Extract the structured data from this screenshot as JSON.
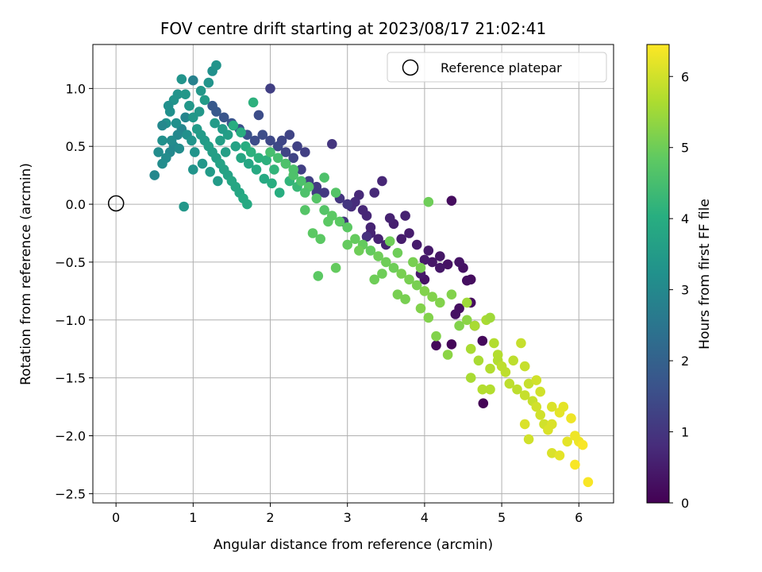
{
  "chart_data": {
    "type": "scatter",
    "title": "FOV centre drift starting at 2023/08/17 21:02:41",
    "xlabel": "Angular distance from reference (arcmin)",
    "ylabel": "Rotation from reference (arcmin)",
    "xlim": [
      -0.3,
      6.45
    ],
    "ylim": [
      -2.58,
      1.38
    ],
    "xticks": [
      0,
      1,
      2,
      3,
      4,
      5,
      6
    ],
    "xtick_labels": [
      "0",
      "1",
      "2",
      "3",
      "4",
      "5",
      "6"
    ],
    "yticks": [
      1.0,
      0.5,
      0.0,
      -0.5,
      -1.0,
      -1.5,
      -2.0,
      -2.5
    ],
    "ytick_labels": [
      "1.0",
      "0.5",
      "0.0",
      "−0.5",
      "−1.0",
      "−1.5",
      "−2.0",
      "−2.5"
    ],
    "grid": true,
    "colormap": "viridis",
    "colorbar": {
      "label": "Hours from first FF file",
      "range": [
        0,
        6.45
      ],
      "ticks": [
        0,
        1,
        2,
        3,
        4,
        5,
        6
      ],
      "tick_labels": [
        "0",
        "1",
        "2",
        "3",
        "4",
        "5",
        "6"
      ]
    },
    "legend": {
      "placement": "top-right",
      "entries": [
        "Reference platepar"
      ]
    },
    "reference_point": {
      "x": 0.0,
      "y": 0.0,
      "label": "Reference platepar"
    },
    "points": [
      [
        4.76,
        -1.72,
        0.05
      ],
      [
        4.35,
        -1.21,
        0.1
      ],
      [
        4.15,
        -1.22,
        0.12
      ],
      [
        4.6,
        -0.65,
        0.2
      ],
      [
        4.55,
        -0.66,
        0.25
      ],
      [
        4.5,
        -0.55,
        0.3
      ],
      [
        4.3,
        -0.52,
        0.3
      ],
      [
        4.45,
        -0.5,
        0.35
      ],
      [
        4.2,
        -0.45,
        0.4
      ],
      [
        4.1,
        -0.5,
        0.4
      ],
      [
        4.0,
        -0.48,
        0.45
      ],
      [
        3.9,
        -0.35,
        0.5
      ],
      [
        3.8,
        -0.25,
        0.5
      ],
      [
        3.7,
        -0.3,
        0.5
      ],
      [
        3.6,
        -0.17,
        0.55
      ],
      [
        3.5,
        -0.35,
        0.6
      ],
      [
        3.4,
        -0.3,
        0.6
      ],
      [
        3.3,
        -0.25,
        0.65
      ],
      [
        3.25,
        -0.1,
        0.7
      ],
      [
        3.2,
        -0.05,
        0.7
      ],
      [
        3.15,
        0.08,
        0.75
      ],
      [
        3.1,
        0.02,
        0.8
      ],
      [
        3.05,
        -0.02,
        0.8
      ],
      [
        4.35,
        0.03,
        0.2
      ],
      [
        4.0,
        -0.65,
        0.35
      ],
      [
        4.6,
        -0.85,
        0.2
      ],
      [
        4.45,
        -0.9,
        0.25
      ],
      [
        3.45,
        0.2,
        0.7
      ],
      [
        4.75,
        -1.18,
        0.15
      ],
      [
        4.4,
        -0.95,
        0.3
      ],
      [
        4.05,
        -0.4,
        0.45
      ],
      [
        3.95,
        -0.6,
        0.45
      ],
      [
        3.35,
        0.1,
        0.75
      ],
      [
        3.3,
        -0.2,
        0.65
      ],
      [
        4.2,
        -0.55,
        0.4
      ],
      [
        4.65,
        -1.05,
        0.18
      ],
      [
        3.75,
        -0.1,
        0.6
      ],
      [
        3.55,
        -0.12,
        0.6
      ],
      [
        3.0,
        0.0,
        1.0
      ],
      [
        2.9,
        0.05,
        1.0
      ],
      [
        2.7,
        0.1,
        1.1
      ],
      [
        2.6,
        0.15,
        1.1
      ],
      [
        2.5,
        0.2,
        1.2
      ],
      [
        2.4,
        0.3,
        1.2
      ],
      [
        2.3,
        0.4,
        1.3
      ],
      [
        2.2,
        0.45,
        1.3
      ],
      [
        2.1,
        0.5,
        1.4
      ],
      [
        2.0,
        0.55,
        1.4
      ],
      [
        1.9,
        0.6,
        1.5
      ],
      [
        1.8,
        0.55,
        1.5
      ],
      [
        1.7,
        0.6,
        1.6
      ],
      [
        1.6,
        0.65,
        1.6
      ],
      [
        1.5,
        0.7,
        1.7
      ],
      [
        1.4,
        0.75,
        1.7
      ],
      [
        1.3,
        0.8,
        1.8
      ],
      [
        1.25,
        0.85,
        1.8
      ],
      [
        2.0,
        1.0,
        1.2
      ],
      [
        2.8,
        0.52,
        1.0
      ],
      [
        2.25,
        0.6,
        1.3
      ],
      [
        2.35,
        0.5,
        1.25
      ],
      [
        1.85,
        0.77,
        1.5
      ],
      [
        2.6,
        0.1,
        1.1
      ],
      [
        2.45,
        0.45,
        1.2
      ],
      [
        2.15,
        0.55,
        1.35
      ],
      [
        2.95,
        -0.15,
        1.0
      ],
      [
        3.25,
        -0.28,
        0.9
      ],
      [
        2.2,
        0.35,
        1.3
      ],
      [
        1.0,
        1.07,
        2.8
      ],
      [
        0.95,
        0.85,
        2.8
      ],
      [
        0.9,
        0.75,
        2.9
      ],
      [
        0.85,
        0.65,
        2.9
      ],
      [
        0.8,
        0.6,
        3.0
      ],
      [
        0.75,
        0.5,
        3.0
      ],
      [
        0.7,
        0.45,
        3.0
      ],
      [
        0.65,
        0.4,
        3.1
      ],
      [
        0.6,
        0.35,
        3.1
      ],
      [
        0.55,
        0.45,
        3.1
      ],
      [
        0.6,
        0.55,
        3.2
      ],
      [
        0.65,
        0.7,
        3.2
      ],
      [
        0.7,
        0.8,
        3.2
      ],
      [
        0.75,
        0.9,
        3.3
      ],
      [
        0.8,
        0.95,
        3.3
      ],
      [
        0.85,
        1.08,
        3.3
      ],
      [
        0.9,
        0.95,
        3.4
      ],
      [
        0.95,
        0.85,
        3.4
      ],
      [
        1.0,
        0.75,
        3.4
      ],
      [
        1.05,
        0.65,
        3.5
      ],
      [
        1.1,
        0.6,
        3.5
      ],
      [
        1.15,
        0.55,
        3.5
      ],
      [
        1.2,
        0.5,
        3.6
      ],
      [
        1.25,
        0.45,
        3.6
      ],
      [
        1.3,
        0.4,
        3.6
      ],
      [
        1.35,
        0.35,
        3.7
      ],
      [
        1.4,
        0.3,
        3.7
      ],
      [
        1.45,
        0.25,
        3.7
      ],
      [
        1.5,
        0.2,
        3.8
      ],
      [
        1.55,
        0.15,
        3.8
      ],
      [
        1.6,
        0.1,
        3.8
      ],
      [
        1.65,
        0.05,
        3.9
      ],
      [
        1.7,
        0.0,
        3.9
      ],
      [
        0.5,
        0.25,
        3.0
      ],
      [
        0.6,
        0.68,
        3.0
      ],
      [
        1.25,
        1.15,
        3.2
      ],
      [
        1.3,
        1.2,
        3.3
      ],
      [
        1.2,
        1.05,
        3.3
      ],
      [
        0.88,
        -0.02,
        3.4
      ],
      [
        1.0,
        0.3,
        3.3
      ],
      [
        1.1,
        0.98,
        3.4
      ],
      [
        1.15,
        0.9,
        3.5
      ],
      [
        1.35,
        0.55,
        3.6
      ],
      [
        1.45,
        0.6,
        3.6
      ],
      [
        1.55,
        0.5,
        3.7
      ],
      [
        0.72,
        0.55,
        3.1
      ],
      [
        0.82,
        0.48,
        3.1
      ],
      [
        0.92,
        0.6,
        3.2
      ],
      [
        1.02,
        0.45,
        3.3
      ],
      [
        0.68,
        0.85,
        3.2
      ],
      [
        0.78,
        0.7,
        3.2
      ],
      [
        1.12,
        0.35,
        3.4
      ],
      [
        1.22,
        0.28,
        3.5
      ],
      [
        1.32,
        0.2,
        3.5
      ],
      [
        1.42,
        0.45,
        3.6
      ],
      [
        1.62,
        0.4,
        3.8
      ],
      [
        1.72,
        0.35,
        3.8
      ],
      [
        1.82,
        0.3,
        3.9
      ],
      [
        1.92,
        0.22,
        3.9
      ],
      [
        2.02,
        0.18,
        4.0
      ],
      [
        2.12,
        0.1,
        4.0
      ],
      [
        1.78,
        0.88,
        4.1
      ],
      [
        1.52,
        0.68,
        4.0
      ],
      [
        1.62,
        0.62,
        4.0
      ],
      [
        1.68,
        0.5,
        4.0
      ],
      [
        1.75,
        0.45,
        4.1
      ],
      [
        1.85,
        0.4,
        4.1
      ],
      [
        1.95,
        0.38,
        4.1
      ],
      [
        2.05,
        0.3,
        4.2
      ],
      [
        2.25,
        0.2,
        4.2
      ],
      [
        2.35,
        0.15,
        4.3
      ],
      [
        0.98,
        0.55,
        3.3
      ],
      [
        1.08,
        0.8,
        3.4
      ],
      [
        1.28,
        0.7,
        3.5
      ],
      [
        1.38,
        0.65,
        3.5
      ],
      [
        2.0,
        0.45,
        4.5
      ],
      [
        2.1,
        0.4,
        4.5
      ],
      [
        2.2,
        0.35,
        4.6
      ],
      [
        2.3,
        0.3,
        4.6
      ],
      [
        2.4,
        0.2,
        4.6
      ],
      [
        2.5,
        0.15,
        4.7
      ],
      [
        2.6,
        0.05,
        4.7
      ],
      [
        2.7,
        -0.05,
        4.7
      ],
      [
        2.8,
        -0.1,
        4.8
      ],
      [
        2.9,
        -0.15,
        4.8
      ],
      [
        3.0,
        -0.2,
        4.8
      ],
      [
        3.1,
        -0.3,
        4.9
      ],
      [
        3.2,
        -0.35,
        4.9
      ],
      [
        3.3,
        -0.4,
        4.9
      ],
      [
        3.4,
        -0.45,
        5.0
      ],
      [
        3.5,
        -0.5,
        5.0
      ],
      [
        3.6,
        -0.55,
        5.0
      ],
      [
        3.7,
        -0.6,
        5.1
      ],
      [
        3.8,
        -0.65,
        5.1
      ],
      [
        3.9,
        -0.7,
        5.1
      ],
      [
        4.0,
        -0.75,
        5.2
      ],
      [
        4.1,
        -0.8,
        5.2
      ],
      [
        4.2,
        -0.85,
        5.2
      ],
      [
        2.62,
        -0.62,
        4.8
      ],
      [
        2.85,
        -0.55,
        4.9
      ],
      [
        3.0,
        -0.35,
        4.9
      ],
      [
        3.15,
        -0.4,
        5.0
      ],
      [
        3.35,
        -0.65,
        5.0
      ],
      [
        3.45,
        -0.6,
        5.0
      ],
      [
        3.65,
        -0.78,
        5.1
      ],
      [
        3.75,
        -0.82,
        5.1
      ],
      [
        3.95,
        -0.9,
        5.2
      ],
      [
        4.05,
        -0.98,
        5.2
      ],
      [
        4.15,
        -1.14,
        5.2
      ],
      [
        4.3,
        -1.3,
        5.3
      ],
      [
        4.05,
        0.02,
        5.0
      ],
      [
        2.7,
        0.23,
        4.6
      ],
      [
        2.85,
        0.1,
        4.7
      ],
      [
        2.45,
        -0.05,
        4.7
      ],
      [
        2.55,
        -0.25,
        4.8
      ],
      [
        2.65,
        -0.3,
        4.8
      ],
      [
        2.75,
        -0.15,
        4.8
      ],
      [
        2.3,
        0.25,
        4.6
      ],
      [
        2.45,
        0.1,
        4.6
      ],
      [
        3.55,
        -0.32,
        5.0
      ],
      [
        3.65,
        -0.42,
        5.0
      ],
      [
        3.85,
        -0.5,
        5.1
      ],
      [
        3.95,
        -0.55,
        5.1
      ],
      [
        4.35,
        -0.78,
        5.2
      ],
      [
        4.45,
        -1.05,
        5.2
      ],
      [
        4.55,
        -1.0,
        5.3
      ],
      [
        4.8,
        -1.0,
        5.6
      ],
      [
        4.9,
        -1.2,
        5.7
      ],
      [
        4.95,
        -1.35,
        5.7
      ],
      [
        5.05,
        -1.45,
        5.8
      ],
      [
        5.1,
        -1.55,
        5.8
      ],
      [
        5.2,
        -1.6,
        5.8
      ],
      [
        5.3,
        -1.4,
        5.9
      ],
      [
        5.35,
        -1.55,
        5.9
      ],
      [
        5.4,
        -1.7,
        5.9
      ],
      [
        5.45,
        -1.75,
        6.0
      ],
      [
        5.5,
        -1.82,
        6.0
      ],
      [
        5.55,
        -1.9,
        6.0
      ],
      [
        5.6,
        -1.95,
        6.1
      ],
      [
        5.65,
        -2.15,
        6.1
      ],
      [
        4.75,
        -1.6,
        5.7
      ],
      [
        4.85,
        -1.6,
        5.7
      ],
      [
        5.0,
        -1.4,
        5.8
      ],
      [
        5.25,
        -1.2,
        5.9
      ],
      [
        5.3,
        -1.65,
        5.9
      ],
      [
        5.35,
        -2.03,
        6.0
      ],
      [
        4.6,
        -1.25,
        5.6
      ],
      [
        4.7,
        -1.35,
        5.6
      ],
      [
        4.85,
        -1.42,
        5.7
      ],
      [
        4.6,
        -1.5,
        5.6
      ],
      [
        5.45,
        -1.52,
        6.0
      ],
      [
        5.5,
        -1.62,
        6.0
      ],
      [
        5.65,
        -1.9,
        6.1
      ],
      [
        5.75,
        -1.8,
        6.2
      ],
      [
        5.8,
        -1.75,
        6.2
      ],
      [
        5.85,
        -2.05,
        6.2
      ],
      [
        5.9,
        -1.85,
        6.3
      ],
      [
        5.95,
        -2.0,
        6.3
      ],
      [
        6.0,
        -2.05,
        6.3
      ],
      [
        6.05,
        -2.08,
        6.4
      ],
      [
        5.95,
        -2.25,
        6.4
      ],
      [
        6.12,
        -2.4,
        6.4
      ],
      [
        5.3,
        -1.9,
        6.1
      ],
      [
        5.15,
        -1.35,
        5.8
      ],
      [
        4.95,
        -1.3,
        5.7
      ],
      [
        4.65,
        -1.05,
        5.6
      ],
      [
        4.55,
        -0.85,
        5.5
      ],
      [
        4.85,
        -0.98,
        5.5
      ],
      [
        5.65,
        -1.75,
        6.1
      ],
      [
        5.75,
        -2.17,
        6.2
      ]
    ]
  }
}
